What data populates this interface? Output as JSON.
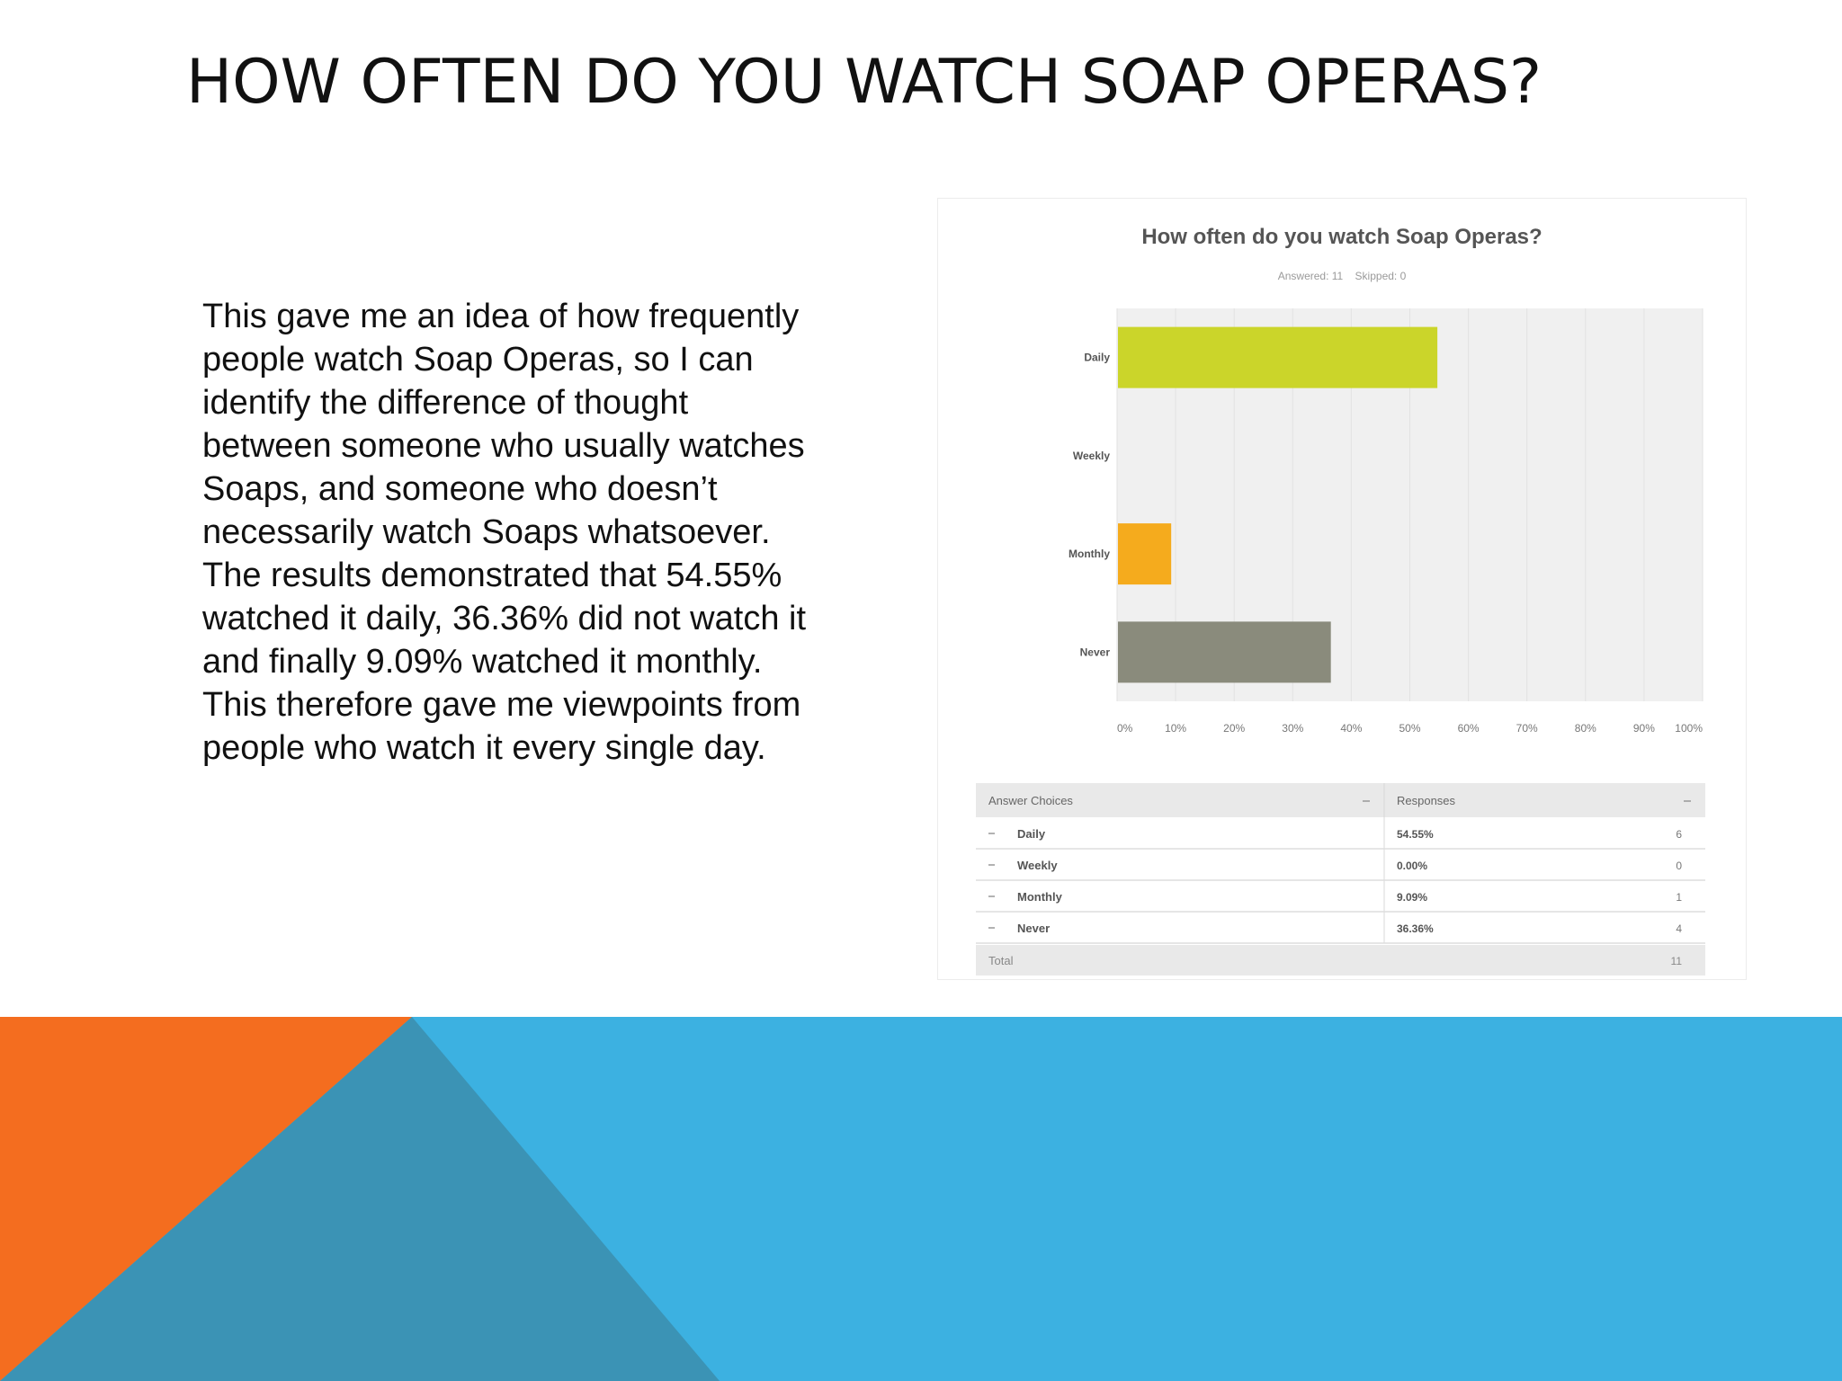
{
  "slide": {
    "title": "HOW OFTEN DO YOU WATCH SOAP OPERAS?",
    "body": "This gave me an idea of how frequently people watch Soap Operas, so I can identify the difference of thought between someone who usually watches Soaps, and someone who doesn’t necessarily watch Soaps whatsoever. The results demonstrated that 54.55% watched it daily, 36.36% did not watch it and finally 9.09% watched it monthly. This therefore gave me viewpoints from people who watch it every single day."
  },
  "colors": {
    "background_blue": "#3cb1e1",
    "orange": "#f46d1f",
    "slate": "#3b93b5"
  },
  "chart_data": {
    "type": "bar",
    "orientation": "horizontal",
    "title": "How often do you watch Soap Operas?",
    "subtitle": "Answered: 11    Skipped: 0",
    "categories": [
      "Daily",
      "Weekly",
      "Monthly",
      "Never"
    ],
    "values": [
      54.55,
      0,
      9.09,
      36.36
    ],
    "colors": [
      "#cbd52a",
      "#e0e0e0",
      "#f5ab1d",
      "#8a8b7c"
    ],
    "xlim": [
      0,
      100
    ],
    "x_ticks": [
      "0%",
      "10%",
      "20%",
      "30%",
      "40%",
      "50%",
      "60%",
      "70%",
      "80%",
      "90%",
      "100%"
    ],
    "grid": true
  },
  "table": {
    "headers": [
      "Answer Choices",
      "Responses"
    ],
    "rows": [
      {
        "choice": "Daily",
        "percent": "54.55%",
        "count": "6"
      },
      {
        "choice": "Weekly",
        "percent": "0.00%",
        "count": "0"
      },
      {
        "choice": "Monthly",
        "percent": "9.09%",
        "count": "1"
      },
      {
        "choice": "Never",
        "percent": "36.36%",
        "count": "4"
      }
    ],
    "total_label": "Total",
    "total_value": "11"
  }
}
